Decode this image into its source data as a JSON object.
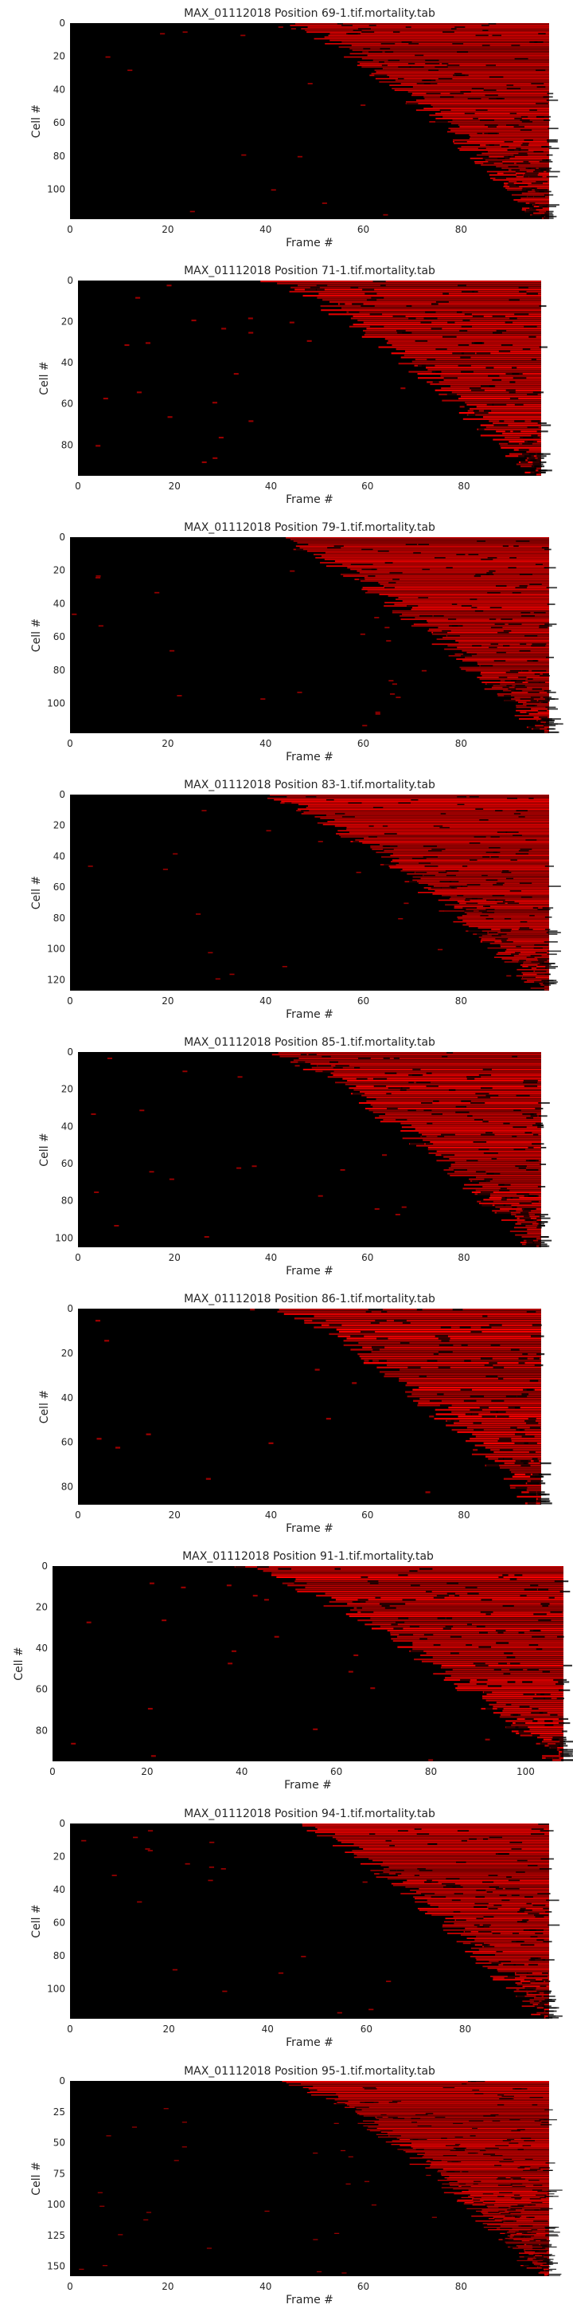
{
  "colors": {
    "background": "#000000",
    "event": "#ff0000",
    "text": "#262626"
  },
  "chart_data": [
    {
      "type": "heatmap",
      "title": "MAX_01112018 Position 69-1.tif.mortality.tab",
      "xlabel": "Frame #",
      "ylabel": "Cell #",
      "xlim": [
        0,
        98
      ],
      "ylim": [
        0,
        118
      ],
      "xticks": [
        0,
        20,
        40,
        60,
        80
      ],
      "yticks": [
        0,
        20,
        40,
        60,
        80,
        100
      ],
      "onset_first_frame": 45,
      "onset_last_frame": 97,
      "colormap": [
        "#000000",
        "#ff0000"
      ]
    },
    {
      "type": "heatmap",
      "title": "MAX_01112018 Position 71-1.tif.mortality.tab",
      "xlabel": "Frame #",
      "ylabel": "Cell #",
      "xlim": [
        0,
        96
      ],
      "ylim": [
        0,
        95
      ],
      "xticks": [
        0,
        20,
        40,
        60,
        80
      ],
      "yticks": [
        0,
        20,
        40,
        60,
        80
      ],
      "onset_first_frame": 40,
      "onset_last_frame": 95,
      "colormap": [
        "#000000",
        "#ff0000"
      ]
    },
    {
      "type": "heatmap",
      "title": "MAX_01112018 Position 79-1.tif.mortality.tab",
      "xlabel": "Frame #",
      "ylabel": "Cell #",
      "xlim": [
        0,
        98
      ],
      "ylim": [
        0,
        118
      ],
      "xticks": [
        0,
        20,
        40,
        60,
        80
      ],
      "yticks": [
        0,
        20,
        40,
        60,
        80,
        100
      ],
      "onset_first_frame": 42,
      "onset_last_frame": 97,
      "colormap": [
        "#000000",
        "#ff0000"
      ]
    },
    {
      "type": "heatmap",
      "title": "MAX_01112018 Position 83-1.tif.mortality.tab",
      "xlabel": "Frame #",
      "ylabel": "Cell #",
      "xlim": [
        0,
        98
      ],
      "ylim": [
        0,
        127
      ],
      "xticks": [
        0,
        20,
        40,
        60,
        80
      ],
      "yticks": [
        0,
        20,
        40,
        60,
        80,
        100,
        120
      ],
      "onset_first_frame": 40,
      "onset_last_frame": 97,
      "colormap": [
        "#000000",
        "#ff0000"
      ]
    },
    {
      "type": "heatmap",
      "title": "MAX_01112018 Position 85-1.tif.mortality.tab",
      "xlabel": "Frame #",
      "ylabel": "Cell #",
      "xlim": [
        0,
        96
      ],
      "ylim": [
        0,
        105
      ],
      "xticks": [
        0,
        20,
        40,
        60,
        80
      ],
      "yticks": [
        0,
        20,
        40,
        60,
        80,
        100
      ],
      "onset_first_frame": 40,
      "onset_last_frame": 95,
      "colormap": [
        "#000000",
        "#ff0000"
      ]
    },
    {
      "type": "heatmap",
      "title": "MAX_01112018 Position 86-1.tif.mortality.tab",
      "xlabel": "Frame #",
      "ylabel": "Cell #",
      "xlim": [
        0,
        96
      ],
      "ylim": [
        0,
        88
      ],
      "xticks": [
        0,
        20,
        40,
        60,
        80
      ],
      "yticks": [
        0,
        20,
        40,
        60,
        80
      ],
      "onset_first_frame": 42,
      "onset_last_frame": 95,
      "colormap": [
        "#000000",
        "#ff0000"
      ]
    },
    {
      "type": "heatmap",
      "title": "MAX_01112018 Position 91-1.tif.mortality.tab",
      "xlabel": "Frame #",
      "ylabel": "Cell #",
      "xlim": [
        0,
        108
      ],
      "ylim": [
        0,
        95
      ],
      "xticks": [
        0,
        20,
        40,
        60,
        80,
        100
      ],
      "yticks": [
        0,
        20,
        40,
        60,
        80
      ],
      "onset_first_frame": 40,
      "onset_last_frame": 107,
      "colormap": [
        "#000000",
        "#ff0000"
      ]
    },
    {
      "type": "heatmap",
      "title": "MAX_01112018 Position 94-1.tif.mortality.tab",
      "xlabel": "Frame #",
      "ylabel": "Cell #",
      "xlim": [
        0,
        97
      ],
      "ylim": [
        0,
        118
      ],
      "xticks": [
        0,
        20,
        40,
        60,
        80
      ],
      "yticks": [
        0,
        20,
        40,
        60,
        80,
        100
      ],
      "onset_first_frame": 46,
      "onset_last_frame": 96,
      "colormap": [
        "#000000",
        "#ff0000"
      ]
    },
    {
      "type": "heatmap",
      "title": "MAX_01112018 Position 95-1.tif.mortality.tab",
      "xlabel": "Frame #",
      "ylabel": "Cell #",
      "xlim": [
        0,
        98
      ],
      "ylim": [
        0,
        158
      ],
      "xticks": [
        0,
        20,
        40,
        60,
        80
      ],
      "yticks": [
        0,
        25,
        50,
        75,
        100,
        125,
        150
      ],
      "onset_first_frame": 45,
      "onset_last_frame": 97,
      "colormap": [
        "#000000",
        "#ff0000"
      ]
    }
  ]
}
